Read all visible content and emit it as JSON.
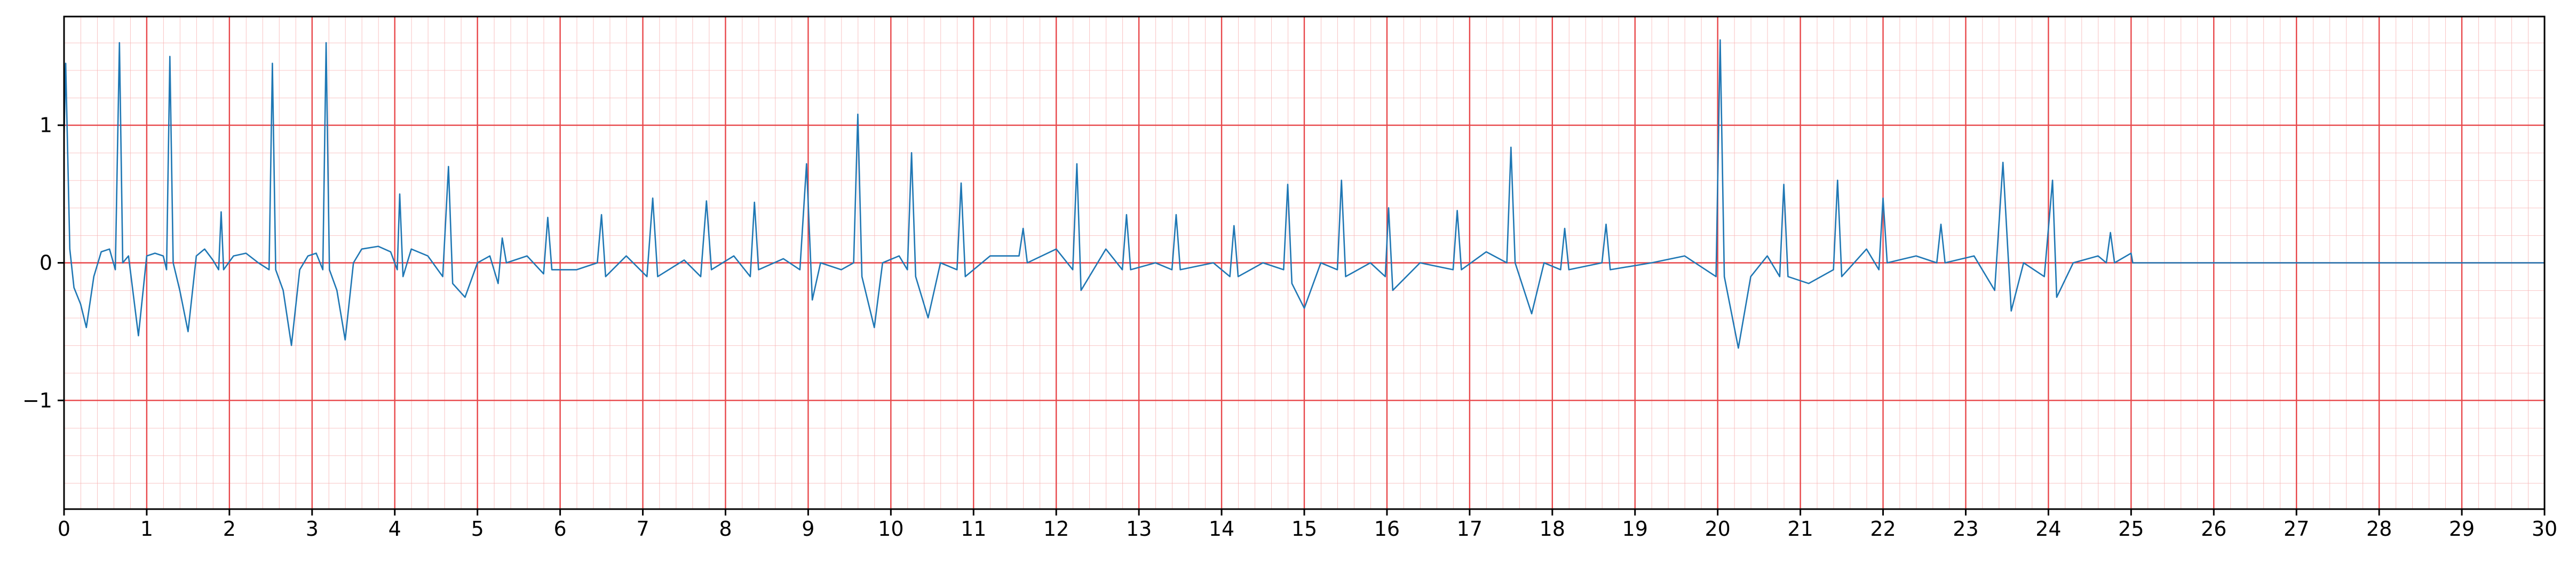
{
  "chart_data": {
    "type": "line",
    "color": "#1f77b4",
    "grid": true,
    "xlim": [
      0,
      30
    ],
    "ylim": [
      -1.79,
      1.79
    ],
    "xticks": [
      0,
      1,
      2,
      3,
      4,
      5,
      6,
      7,
      8,
      9,
      10,
      11,
      12,
      13,
      14,
      15,
      16,
      17,
      18,
      19,
      20,
      21,
      22,
      23,
      24,
      25,
      26,
      27,
      28,
      29,
      30
    ],
    "yticks": [
      {
        "value": -1,
        "label": "−1"
      },
      0,
      1
    ],
    "x": [
      0,
      0.02,
      0.07,
      0.12,
      0.2,
      0.27,
      0.36,
      0.45,
      0.55,
      0.62,
      0.67,
      0.71,
      0.78,
      0.9,
      1.0,
      1.1,
      1.2,
      1.24,
      1.28,
      1.32,
      1.4,
      1.5,
      1.6,
      1.7,
      1.8,
      1.87,
      1.9,
      1.93,
      2.05,
      2.2,
      2.35,
      2.48,
      2.52,
      2.56,
      2.65,
      2.75,
      2.85,
      2.95,
      3.05,
      3.13,
      3.17,
      3.21,
      3.3,
      3.4,
      3.5,
      3.6,
      3.8,
      3.95,
      4.03,
      4.06,
      4.1,
      4.2,
      4.4,
      4.58,
      4.65,
      4.7,
      4.85,
      5.0,
      5.15,
      5.25,
      5.3,
      5.35,
      5.6,
      5.8,
      5.85,
      5.9,
      6.2,
      6.45,
      6.5,
      6.55,
      6.8,
      7.05,
      7.12,
      7.18,
      7.5,
      7.7,
      7.77,
      7.83,
      8.1,
      8.3,
      8.35,
      8.4,
      8.7,
      8.9,
      8.98,
      9.05,
      9.15,
      9.4,
      9.55,
      9.6,
      9.65,
      9.8,
      9.9,
      10.1,
      10.2,
      10.25,
      10.3,
      10.45,
      10.6,
      10.8,
      10.85,
      10.9,
      11.2,
      11.55,
      11.6,
      11.65,
      12.0,
      12.2,
      12.25,
      12.3,
      12.6,
      12.8,
      12.85,
      12.9,
      13.2,
      13.4,
      13.45,
      13.5,
      13.9,
      14.1,
      14.15,
      14.2,
      14.5,
      14.75,
      14.8,
      14.85,
      15.0,
      15.2,
      15.4,
      15.45,
      15.5,
      15.8,
      15.98,
      16.02,
      16.07,
      16.4,
      16.8,
      16.85,
      16.9,
      17.2,
      17.45,
      17.5,
      17.55,
      17.75,
      17.9,
      18.1,
      18.15,
      18.2,
      18.6,
      18.65,
      18.7,
      19.2,
      19.6,
      19.98,
      20.03,
      20.08,
      20.25,
      20.4,
      20.6,
      20.75,
      20.8,
      20.85,
      21.1,
      21.4,
      21.45,
      21.5,
      21.8,
      21.95,
      22.0,
      22.05,
      22.4,
      22.65,
      22.7,
      22.75,
      23.1,
      23.35,
      23.45,
      23.55,
      23.7,
      23.95,
      24.05,
      24.1,
      24.3,
      24.6,
      24.7,
      24.75,
      24.8,
      25.0,
      25.02,
      30
    ],
    "values": [
      0.9,
      1.45,
      0.1,
      -0.18,
      -0.3,
      -0.47,
      -0.1,
      0.08,
      0.1,
      -0.05,
      1.6,
      0.0,
      0.05,
      -0.53,
      0.05,
      0.07,
      0.05,
      -0.05,
      1.5,
      0.0,
      -0.2,
      -0.5,
      0.05,
      0.1,
      0.02,
      -0.05,
      0.37,
      -0.05,
      0.05,
      0.07,
      0.0,
      -0.05,
      1.45,
      -0.05,
      -0.2,
      -0.6,
      -0.05,
      0.05,
      0.07,
      -0.05,
      1.6,
      -0.05,
      -0.2,
      -0.56,
      0.0,
      0.1,
      0.12,
      0.08,
      -0.05,
      0.5,
      -0.1,
      0.1,
      0.05,
      -0.1,
      0.7,
      -0.15,
      -0.25,
      0.0,
      0.05,
      -0.15,
      0.18,
      0.0,
      0.05,
      -0.08,
      0.33,
      -0.05,
      -0.05,
      0.0,
      0.35,
      -0.1,
      0.05,
      -0.1,
      0.47,
      -0.1,
      0.02,
      -0.1,
      0.45,
      -0.05,
      0.05,
      -0.1,
      0.44,
      -0.05,
      0.03,
      -0.05,
      0.72,
      -0.27,
      0.0,
      -0.05,
      0.0,
      1.08,
      -0.1,
      -0.47,
      0.0,
      0.05,
      -0.05,
      0.8,
      -0.1,
      -0.4,
      0.0,
      -0.05,
      0.58,
      -0.1,
      0.05,
      0.05,
      0.25,
      0.0,
      0.1,
      -0.05,
      0.72,
      -0.2,
      0.1,
      -0.05,
      0.35,
      -0.05,
      0.0,
      -0.05,
      0.35,
      -0.05,
      0.0,
      -0.1,
      0.27,
      -0.1,
      0.0,
      -0.05,
      0.57,
      -0.15,
      -0.33,
      0.0,
      -0.05,
      0.6,
      -0.1,
      0.0,
      -0.1,
      0.4,
      -0.2,
      0.0,
      -0.05,
      0.38,
      -0.05,
      0.08,
      0.0,
      0.84,
      0.0,
      -0.37,
      0.0,
      -0.05,
      0.25,
      -0.05,
      0.0,
      0.28,
      -0.05,
      0.0,
      0.05,
      -0.1,
      1.62,
      -0.1,
      -0.62,
      -0.1,
      0.05,
      -0.1,
      0.57,
      -0.1,
      -0.15,
      -0.05,
      0.6,
      -0.1,
      0.1,
      -0.05,
      0.47,
      0.0,
      0.05,
      0.0,
      0.28,
      0.0,
      0.05,
      -0.2,
      0.73,
      -0.35,
      0.0,
      -0.1,
      0.6,
      -0.25,
      0.0,
      0.05,
      0.0,
      0.22,
      0.0,
      0.07,
      0,
      0
    ]
  }
}
